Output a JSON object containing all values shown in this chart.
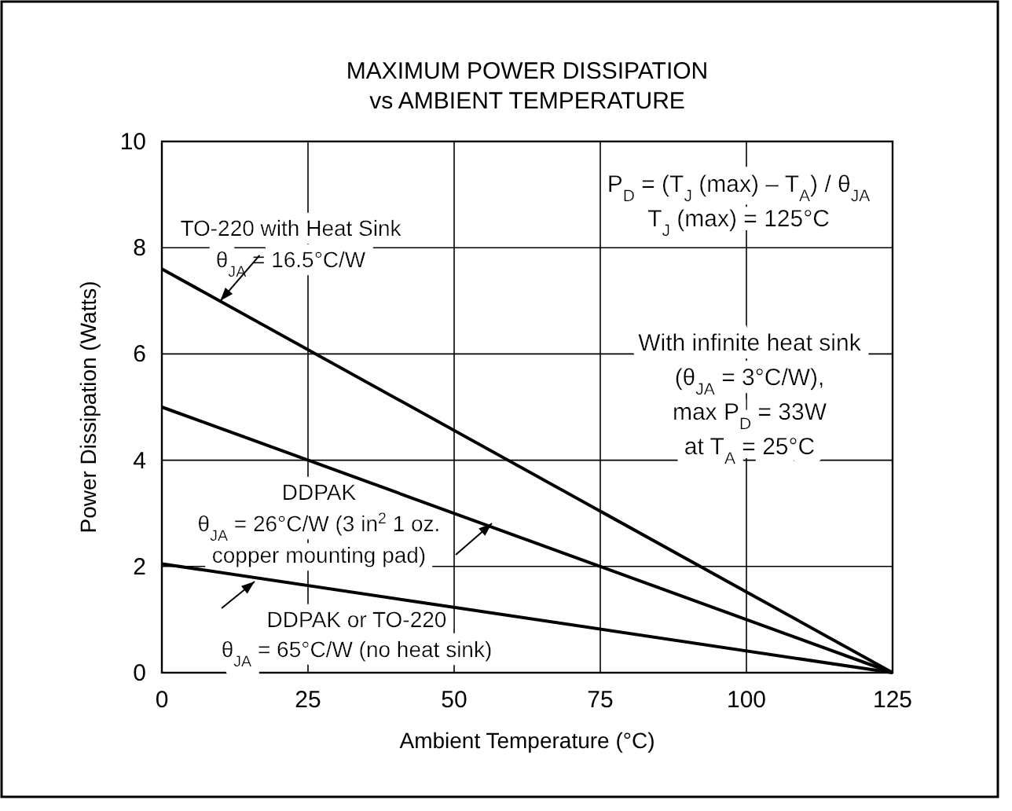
{
  "chart_data": {
    "type": "line",
    "title": "MAXIMUM POWER DISSIPATION\nvs AMBIENT TEMPERATURE",
    "xlabel": "Ambient Temperature (°C)",
    "ylabel": "Power Dissipation (Watts)",
    "x": [
      0,
      125
    ],
    "series": [
      {
        "color": "#000000",
        "values": [
          7.6,
          0
        ]
      },
      {
        "color": "#000000",
        "values": [
          5.0,
          0
        ]
      },
      {
        "color": "#000000",
        "values": [
          2.05,
          0
        ]
      }
    ],
    "xlim": [
      0,
      125
    ],
    "xticks": [
      0,
      25,
      50,
      75,
      100,
      125
    ],
    "ylim": [
      0,
      10
    ],
    "yticks": [
      0,
      2,
      4,
      6,
      8,
      10
    ],
    "grid": true,
    "marker": "none",
    "line_style": "solid",
    "annotations": [
      {
        "text": "TO-220 with Heat Sink\nθ$_{JA}$ = 16.5°C/W",
        "x": 10,
        "y": 7.0
      },
      "DDPAK\nθ$_{JA}$ = 26°C/W (3 in$^{2}$  1 oz.\ncopper mounting pad)",
      "DDPAK or TO-220\nθ$_{JA}$ = 65°C/W (no heat sink)",
      "P$_{D}$ = (T$_{J}$ (max) – T$_{A}$) / θ$_{JA}$\nT$_{J}$ (max) = 125°C",
      "With infinite heat sink\n(θ$_{JA}$ = 3°C/W),\nmax P$_{D}$ = 33W\nat T$_{A}$ = 25°C"
    ]
  }
}
